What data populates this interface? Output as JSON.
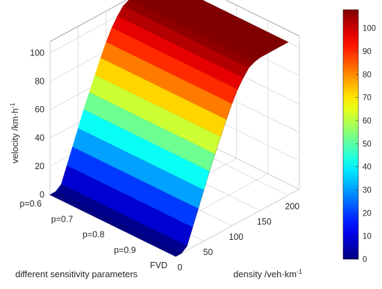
{
  "chart_data": {
    "type": "surface",
    "xlabel": "density /veh·km",
    "xlabel_sup": "-1",
    "ylabel": "different sensitivity parameters",
    "zlabel": "velocity /km·h",
    "zlabel_sup": "-1",
    "x_ticks": [
      "0",
      "50",
      "100",
      "150",
      "200"
    ],
    "y_ticks": [
      "p=0.6",
      "p=0.7",
      "p=0.8",
      "p=0.9",
      "FVD"
    ],
    "z_ticks": [
      "0",
      "20",
      "40",
      "60",
      "80",
      "100"
    ],
    "xlim": [
      0,
      220
    ],
    "zlim": [
      0,
      108
    ],
    "colormap": "jet",
    "colorbar": {
      "ticks": [
        "0",
        "10",
        "20",
        "30",
        "40",
        "50",
        "60",
        "70",
        "80",
        "90",
        "100"
      ],
      "range": [
        0,
        108
      ]
    },
    "density": [
      0,
      10,
      20,
      30,
      40,
      50,
      60,
      70,
      80,
      90,
      100,
      110,
      120,
      130,
      140,
      150,
      160,
      170,
      180,
      190,
      200
    ],
    "series": [
      {
        "name": "p=0.6",
        "velocity": [
          0,
          0,
          3,
          14,
          25,
          36,
          47,
          57,
          67,
          77,
          86,
          94,
          100,
          105,
          107,
          108,
          108,
          108,
          108,
          108,
          108
        ]
      },
      {
        "name": "p=0.7",
        "velocity": [
          0,
          0,
          3,
          14,
          25,
          36,
          47,
          57,
          67,
          77,
          86,
          94,
          100,
          105,
          107,
          108,
          108,
          108,
          108,
          108,
          108
        ]
      },
      {
        "name": "p=0.8",
        "velocity": [
          0,
          0,
          3,
          14,
          25,
          36,
          47,
          57,
          67,
          77,
          86,
          94,
          100,
          105,
          107,
          108,
          108,
          108,
          108,
          108,
          108
        ]
      },
      {
        "name": "p=0.9",
        "velocity": [
          0,
          0,
          3,
          14,
          25,
          36,
          47,
          57,
          67,
          77,
          86,
          94,
          100,
          105,
          107,
          108,
          108,
          108,
          108,
          108,
          108
        ]
      },
      {
        "name": "FVD",
        "velocity": [
          0,
          0,
          3,
          14,
          25,
          36,
          47,
          57,
          67,
          77,
          86,
          94,
          100,
          105,
          107,
          108,
          108,
          108,
          108,
          108,
          108
        ]
      }
    ]
  }
}
